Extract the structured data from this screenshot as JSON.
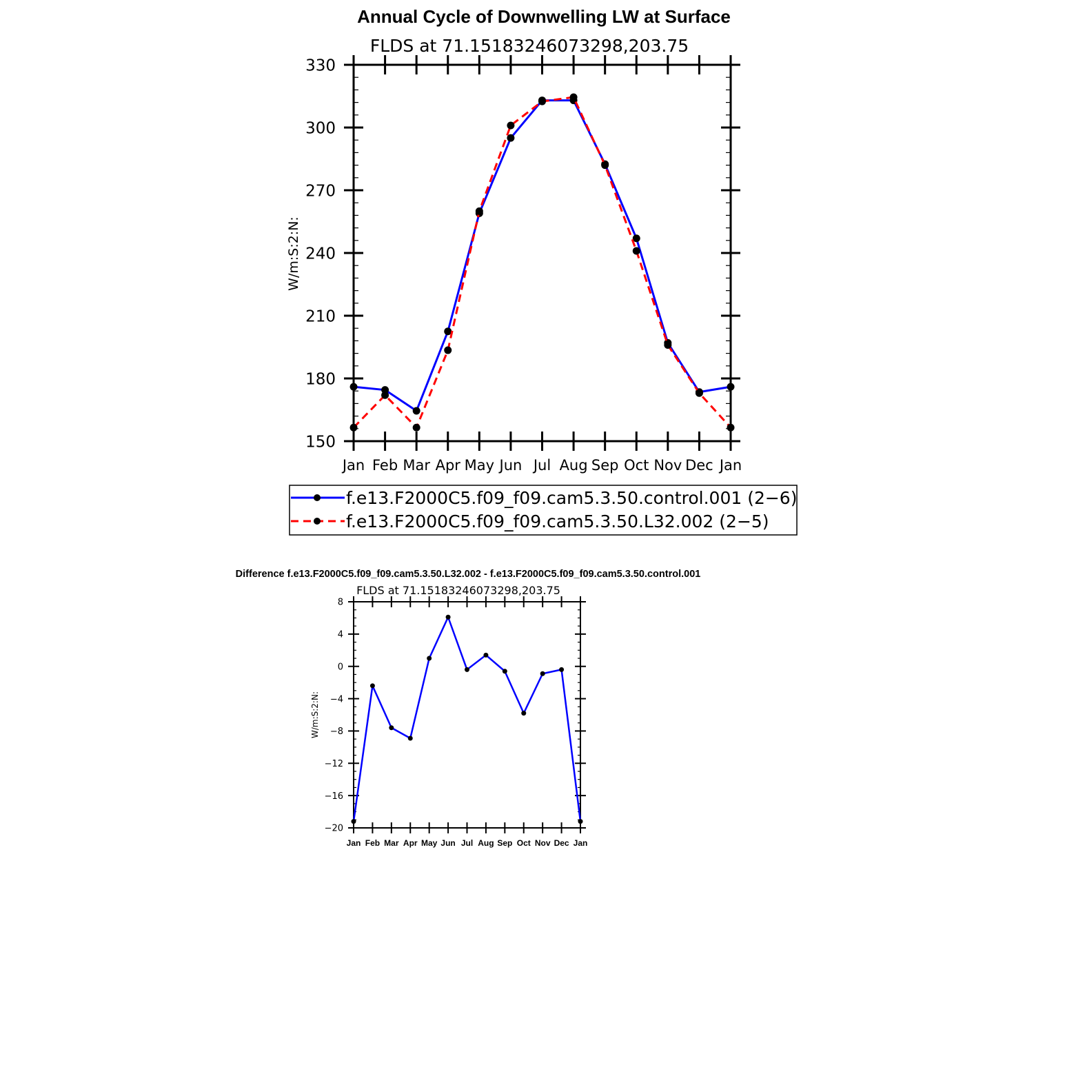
{
  "chart_data": [
    {
      "type": "line",
      "title": "Annual Cycle of Downwelling LW at Surface",
      "subtitle": "FLDS at 71.15183246073298,203.75",
      "ylabel": "W/m:S:2:N:",
      "xlabel": "",
      "categories": [
        "Jan",
        "Feb",
        "Mar",
        "Apr",
        "May",
        "Jun",
        "Jul",
        "Aug",
        "Sep",
        "Oct",
        "Nov",
        "Dec",
        "Jan"
      ],
      "ylim": [
        150,
        330
      ],
      "yticks": [
        "150",
        "180",
        "210",
        "240",
        "270",
        "300",
        "330"
      ],
      "legend_position": "below",
      "series": [
        {
          "name": "f.e13.F2000C5.f09_f09.cam5.3.50.control.001 (2−6)",
          "color": "#0000ff",
          "style": "solid",
          "values": [
            176,
            174.5,
            164.5,
            202.5,
            259,
            295,
            313,
            313,
            282.5,
            247,
            197,
            173.5,
            176
          ]
        },
        {
          "name": "f.e13.F2000C5.f09_f09.cam5.3.50.L32.002 (2−5)",
          "color": "#ff0000",
          "style": "dashed",
          "values": [
            156.5,
            172,
            156.5,
            193.5,
            260,
            301,
            312.5,
            314.5,
            282,
            241,
            196,
            173,
            156.5
          ]
        }
      ]
    },
    {
      "type": "line",
      "title": "Difference f.e13.F2000C5.f09_f09.cam5.3.50.L32.002 - f.e13.F2000C5.f09_f09.cam5.3.50.control.001",
      "subtitle": "FLDS at 71.15183246073298,203.75",
      "ylabel": "W/m:S:2:N:",
      "xlabel": "",
      "categories": [
        "Jan",
        "Feb",
        "Mar",
        "Apr",
        "May",
        "Jun",
        "Jul",
        "Aug",
        "Sep",
        "Oct",
        "Nov",
        "Dec",
        "Jan"
      ],
      "ylim": [
        -20,
        8
      ],
      "yticks": [
        "−20",
        "−16",
        "−12",
        "−8",
        "−4",
        "0",
        "4",
        "8"
      ],
      "series": [
        {
          "color": "#0000ff",
          "style": "solid",
          "values": [
            -19.2,
            -2.4,
            -7.6,
            -8.9,
            1.0,
            6.1,
            -0.4,
            1.4,
            -0.6,
            -5.8,
            -0.9,
            -0.4,
            -19.2
          ]
        }
      ]
    }
  ]
}
